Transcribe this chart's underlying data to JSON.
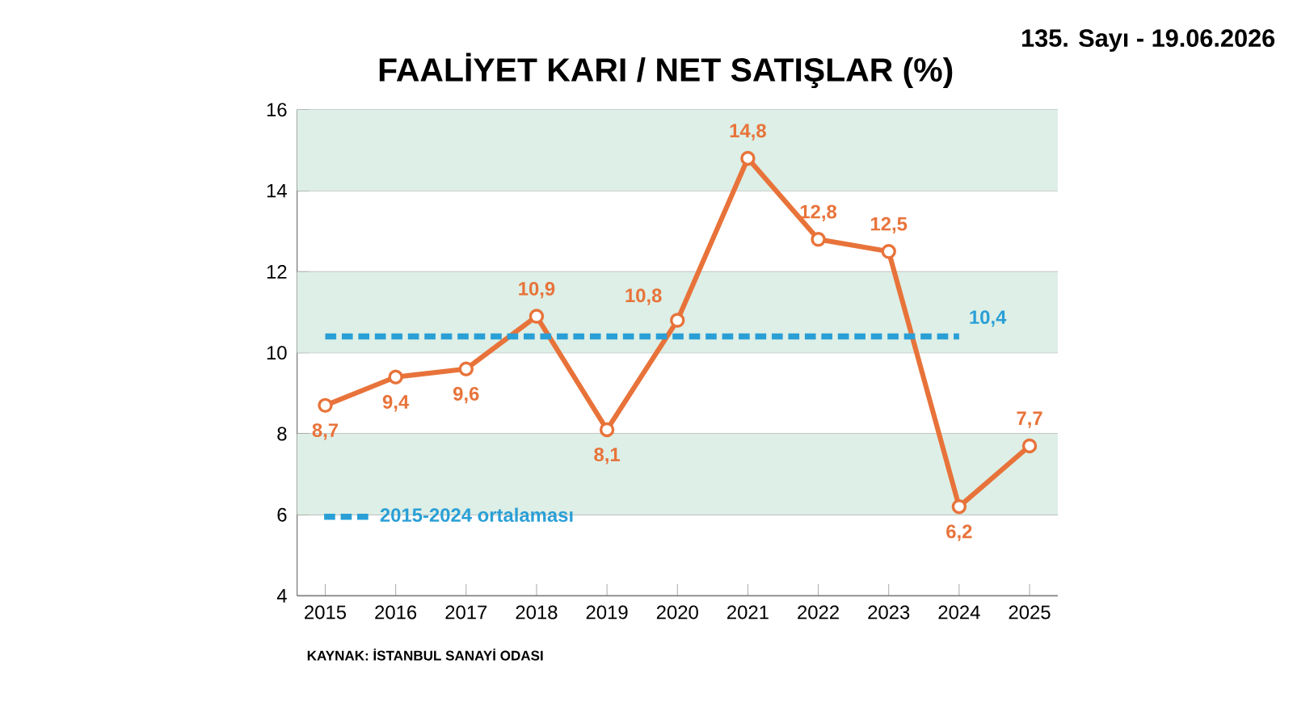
{
  "chart_data": {
    "type": "line",
    "title": "FAALİYET KARI / NET SATIŞLAR (%)",
    "x": [
      2015,
      2016,
      2017,
      2018,
      2019,
      2020,
      2021,
      2022,
      2023,
      2024,
      2025
    ],
    "series": [
      {
        "color": "#e8733a",
        "marker": "circle",
        "values": [
          8.7,
          9.4,
          9.6,
          10.9,
          8.1,
          10.8,
          14.8,
          12.8,
          12.5,
          6.2,
          7.7
        ],
        "value_labels": [
          "8,7",
          "9,4",
          "9,6",
          "10,9",
          "8,1",
          "10,8",
          "14,8",
          "12,8",
          "12,5",
          "6,2",
          "7,7"
        ]
      },
      {
        "name": "2015-2024 ortalaması",
        "type": "line",
        "color": "#2a9fd6",
        "line_style": "dashed",
        "marker": "none",
        "x": [
          2015,
          2024
        ],
        "values": [
          10.4,
          10.4
        ]
      }
    ],
    "xlim": [
      2014.6,
      2025.4
    ],
    "xticks": [
      2015,
      2016,
      2017,
      2018,
      2019,
      2020,
      2021,
      2022,
      2023,
      2024,
      2025
    ],
    "ylim": [
      4,
      16
    ],
    "yticks": [
      4,
      6,
      8,
      10,
      12,
      14,
      16
    ],
    "grid": "y",
    "legend": "bottom left",
    "bands": [
      {
        "axis": "y",
        "from": 14,
        "to": 16,
        "color": "#ddefe6"
      },
      {
        "axis": "y",
        "from": 10,
        "to": 12,
        "color": "#ddefe6"
      },
      {
        "axis": "y",
        "from": 6,
        "to": 8,
        "color": "#ddefe6"
      }
    ],
    "annotations": [
      {
        "text": "10,4",
        "x": 2024,
        "y": 10.4
      },
      "KAYNAK: İSTANBUL SANAYİ ODASI",
      "135. Sayı - 19.06.2026"
    ]
  }
}
